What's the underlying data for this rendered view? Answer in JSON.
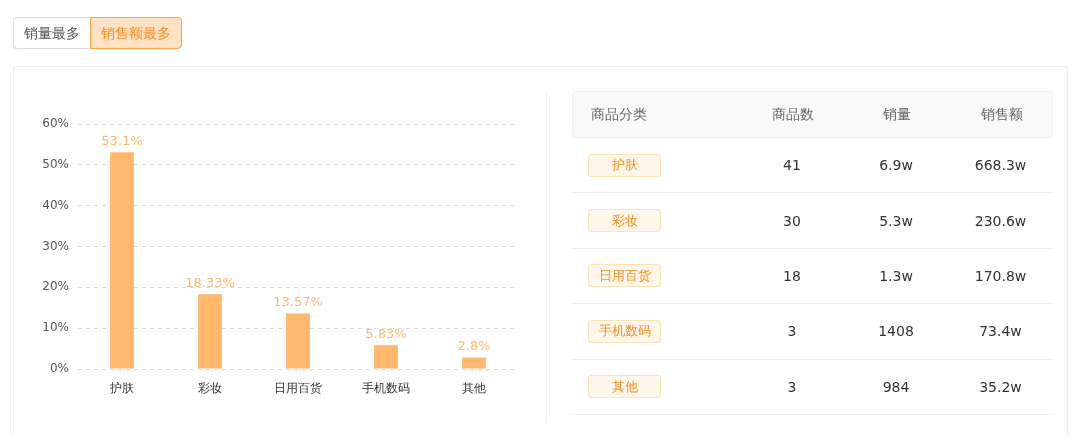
{
  "chart_data": [
    {
      "type": "bar",
      "categories": [
        "护肤",
        "彩妆",
        "日用百货",
        "手机数码",
        "其他"
      ],
      "values": [
        53.1,
        18.33,
        13.57,
        5.83,
        2.8
      ],
      "value_labels": [
        "53.1%",
        "18.33%",
        "13.57%",
        "5.83%",
        "2.8%"
      ],
      "color": "#ffb86c",
      "ylim": [
        0,
        60
      ],
      "yticks": [
        {
          "value": 0,
          "label": "0%"
        },
        {
          "value": 10,
          "label": "10%"
        },
        {
          "value": 20,
          "label": "20%"
        },
        {
          "value": 30,
          "label": "30%"
        },
        {
          "value": 40,
          "label": "40%"
        },
        {
          "value": 50,
          "label": "50%"
        },
        {
          "value": 60,
          "label": "60%"
        }
      ],
      "grid": "y",
      "legend": false,
      "annotations": [
        "销量最多",
        "销售额最多"
      ]
    },
    {
      "type": "other",
      "ylabel": "商品分类",
      "categories": [
        "商品数",
        "销量",
        "销售额"
      ],
      "y_categories": [
        "护肤",
        "彩妆",
        "日用百货",
        "手机数码",
        "其他"
      ],
      "cell_labels": [
        [
          "41",
          "6.9w",
          "668.3w"
        ],
        [
          "30",
          "5.3w",
          "230.6w"
        ],
        [
          "18",
          "1.3w",
          "170.8w"
        ],
        [
          "3",
          "1408",
          "73.4w"
        ],
        [
          "3",
          "984",
          "35.2w"
        ]
      ]
    }
  ]
}
